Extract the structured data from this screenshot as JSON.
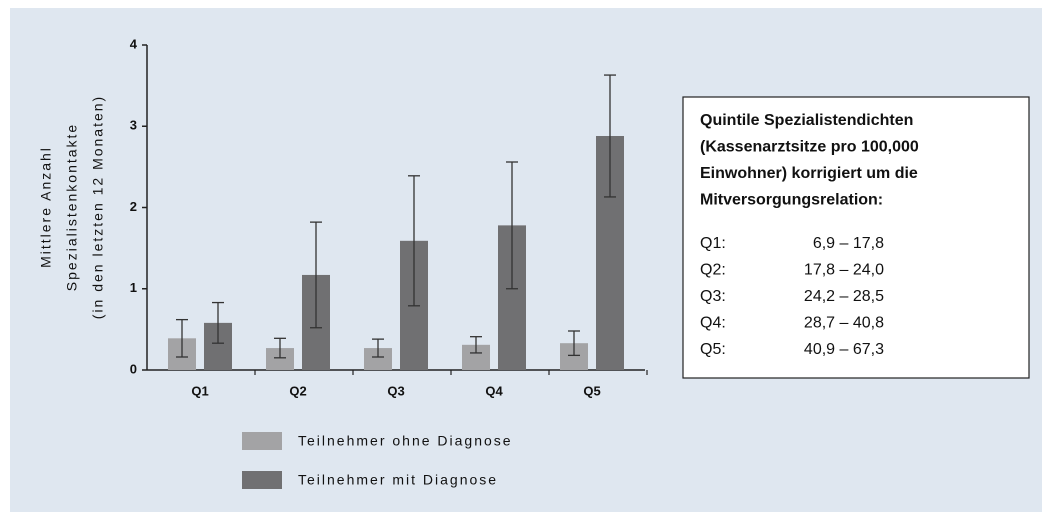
{
  "chart_data": {
    "type": "bar",
    "ylabel": [
      "Mittlere Anzahl",
      "Spezialistenkontakte",
      "(in den letzten 12 Monaten)"
    ],
    "categories": [
      "Q1",
      "Q2",
      "Q3",
      "Q4",
      "Q5"
    ],
    "series": [
      {
        "name": "Teilnehmer ohne Diagnose",
        "color": "#a3a3a5",
        "values": [
          0.39,
          0.27,
          0.27,
          0.31,
          0.33
        ],
        "errors": [
          0.23,
          0.12,
          0.11,
          0.1,
          0.15
        ]
      },
      {
        "name": "Teilnehmer mit Diagnose",
        "color": "#707072",
        "values": [
          0.58,
          1.17,
          1.59,
          1.78,
          2.88
        ],
        "errors": [
          0.25,
          0.65,
          0.8,
          0.78,
          0.75
        ]
      }
    ],
    "ylim": [
      0,
      4
    ],
    "yticks": [
      0,
      1,
      2,
      3,
      4
    ],
    "annotation": {
      "title_lines": [
        "Quintile Spezialistendichten",
        "(Kassenarztsitze pro 100,000",
        "Einwohner) korrigiert um die",
        "Mitversorgungsrelation:"
      ],
      "rows": [
        {
          "label": "Q1:",
          "range": "6,9 – 17,8"
        },
        {
          "label": "Q2:",
          "range": "17,8 – 24,0"
        },
        {
          "label": "Q3:",
          "range": "24,2 – 28,5"
        },
        {
          "label": "Q4:",
          "range": "28,7 – 40,8"
        },
        {
          "label": "Q5:",
          "range": "40,9 – 67,3"
        }
      ]
    }
  }
}
